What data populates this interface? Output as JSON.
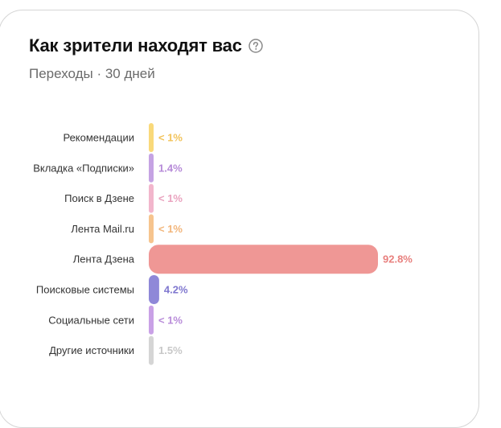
{
  "header": {
    "title": "Как зрители находят вас",
    "subtitle": "Переходы · 30 дней"
  },
  "icons": {
    "help": "question-circle-icon"
  },
  "colors": {
    "title": "#111111",
    "subtitle": "#6b6b6b",
    "help_icon": "#8a8a8a"
  },
  "chart_data": {
    "type": "bar",
    "orientation": "horizontal",
    "categories": [
      "Рекомендации",
      "Вкладка «Подписки»",
      "Поиск в Дзене",
      "Лента Mail.ru",
      "Лента Дзена",
      "Поисковые системы",
      "Социальные сети",
      "Другие источники"
    ],
    "values": [
      0.5,
      1.4,
      0.5,
      0.5,
      92.8,
      4.2,
      0.5,
      1.5
    ],
    "value_labels": [
      "< 1%",
      "1.4%",
      "< 1%",
      "< 1%",
      "92.8%",
      "4.2%",
      "< 1%",
      "1.5%"
    ],
    "colors": [
      "#f9d97a",
      "#c5a3e3",
      "#f2b6cc",
      "#f6c48e",
      "#ef9795",
      "#8f88d8",
      "#c9a1e6",
      "#d5d5d5"
    ],
    "label_colors": [
      "#f2c35a",
      "#b68ad8",
      "#eaa3bf",
      "#f2b57a",
      "#e8807e",
      "#7f77cf",
      "#b88bd9",
      "#c8c8c8"
    ],
    "xlim": [
      0,
      92.8
    ],
    "grid": false,
    "legend": "none"
  }
}
